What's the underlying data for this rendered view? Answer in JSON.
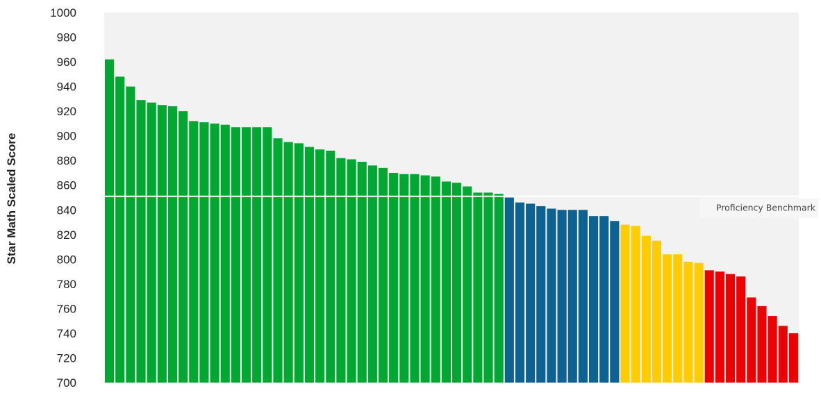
{
  "chart_data": {
    "type": "bar",
    "ylabel": "Star Math Scaled Score",
    "ylim": [
      700,
      1000
    ],
    "yticks": [
      700,
      720,
      740,
      760,
      780,
      800,
      820,
      840,
      860,
      880,
      900,
      920,
      940,
      960,
      980,
      1000
    ],
    "grid": false,
    "background": "#f2f2f2",
    "reference_line": {
      "value": 851,
      "label": "Proficiency Benchmark",
      "color": "#ffffff"
    },
    "band_colors": {
      "green": "#00a832",
      "blue": "#0e6290",
      "yellow": "#ffcc00",
      "red": "#ee0000"
    },
    "values": [
      962,
      948,
      940,
      929,
      927,
      925,
      924,
      920,
      912,
      911,
      910,
      909,
      907,
      907,
      907,
      907,
      898,
      895,
      894,
      891,
      889,
      888,
      882,
      881,
      879,
      876,
      874,
      870,
      869,
      869,
      868,
      867,
      863,
      862,
      859,
      854,
      854,
      853,
      850,
      846,
      845,
      843,
      841,
      840,
      840,
      840,
      835,
      835,
      831,
      828,
      827,
      819,
      815,
      804,
      804,
      798,
      797,
      791,
      790,
      788,
      786,
      769,
      762,
      754,
      746,
      740
    ],
    "bands": [
      "green",
      "green",
      "green",
      "green",
      "green",
      "green",
      "green",
      "green",
      "green",
      "green",
      "green",
      "green",
      "green",
      "green",
      "green",
      "green",
      "green",
      "green",
      "green",
      "green",
      "green",
      "green",
      "green",
      "green",
      "green",
      "green",
      "green",
      "green",
      "green",
      "green",
      "green",
      "green",
      "green",
      "green",
      "green",
      "green",
      "green",
      "green",
      "blue",
      "blue",
      "blue",
      "blue",
      "blue",
      "blue",
      "blue",
      "blue",
      "blue",
      "blue",
      "blue",
      "yellow",
      "yellow",
      "yellow",
      "yellow",
      "yellow",
      "yellow",
      "yellow",
      "yellow",
      "red",
      "red",
      "red",
      "red",
      "red",
      "red",
      "red",
      "red",
      "red"
    ]
  }
}
